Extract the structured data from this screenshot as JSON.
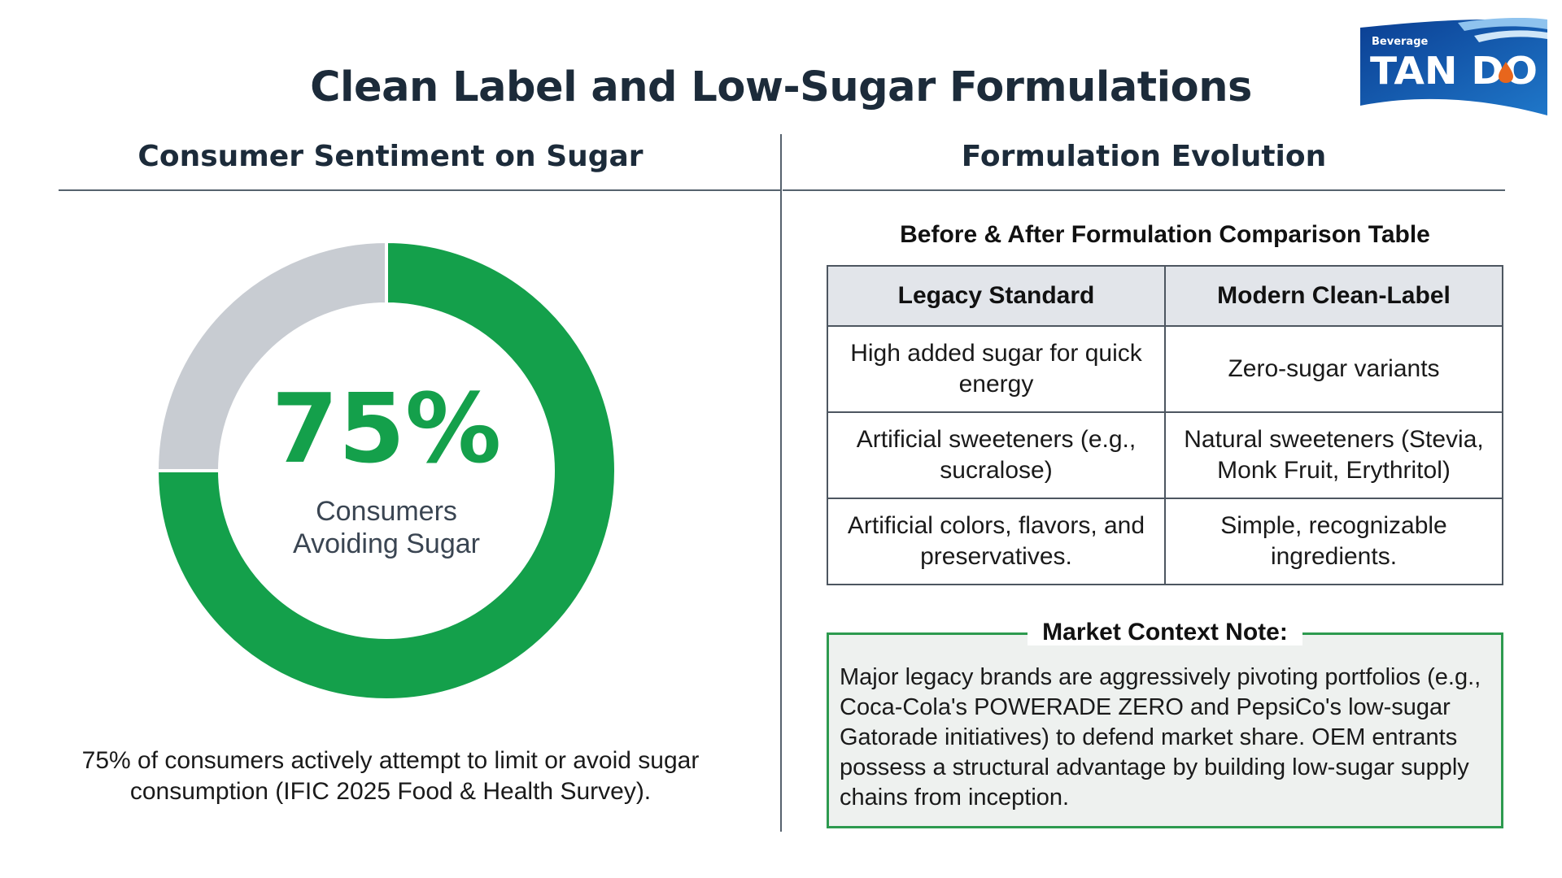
{
  "title": "Clean Label and Low-Sugar Formulations",
  "logo": {
    "small_text": "Beverage",
    "main_text": "TAN DO",
    "colors": {
      "dark": "#0b3f93",
      "mid": "#1f77c9",
      "drop": "#e8661c"
    }
  },
  "left_section": {
    "title": "Consumer Sentiment on Sugar",
    "caption": "75% of consumers actively attempt to limit or avoid sugar consumption (IFIC 2025 Food & Health Survey)."
  },
  "right_section": {
    "title": "Formulation Evolution",
    "table": {
      "title": "Before & After Formulation Comparison Table",
      "headers": [
        "Legacy Standard",
        "Modern Clean-Label"
      ],
      "rows": [
        [
          "High added sugar for quick energy",
          "Zero-sugar variants"
        ],
        [
          "Artificial sweeteners (e.g., sucralose)",
          "Natural sweeteners (Stevia, Monk Fruit, Erythritol)"
        ],
        [
          "Artificial colors, flavors, and preservatives.",
          "Simple, recognizable ingredients."
        ]
      ]
    },
    "note": {
      "title": "Market Context Note:",
      "body": "Major legacy brands are aggressively pivoting portfolios (e.g., Coca-Cola's POWERADE ZERO and PepsiCo's low-sugar Gatorade initiatives) to defend market share. OEM entrants possess a structural advantage by building low-sugar supply chains from inception."
    }
  },
  "chart_data": {
    "type": "pie",
    "center_value": "75%",
    "center_label_lines": [
      "Consumers",
      "Avoiding Sugar"
    ],
    "slices": [
      {
        "value": 75,
        "color": "#14a04b"
      },
      {
        "value": 25,
        "color": "#c8ccd2"
      }
    ]
  },
  "colors": {
    "accent_green": "#14a04b",
    "dark_text": "#1c2b3a",
    "header_gray": "#e2e5ea"
  }
}
